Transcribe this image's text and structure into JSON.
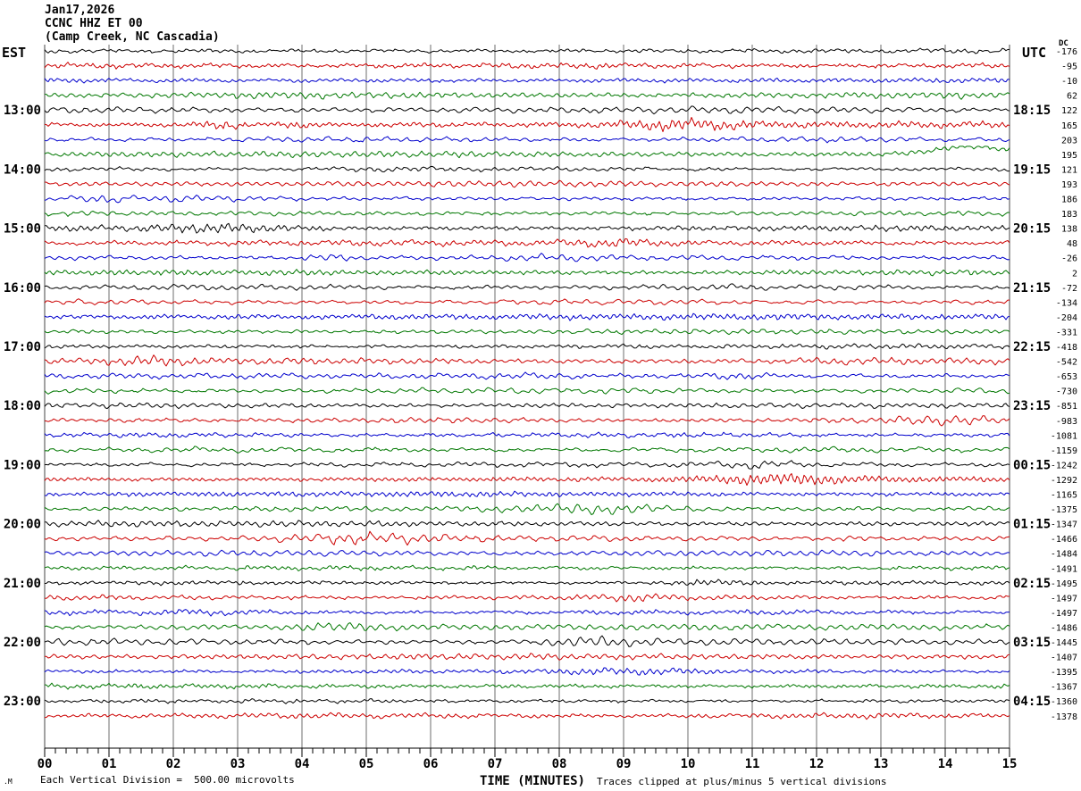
{
  "title": {
    "line1": "Jan17,2026",
    "line2": "CCNC HHZ ET 00",
    "line3": "(Camp Creek, NC Cascadia)"
  },
  "axis": {
    "left_header": "EST",
    "right_header": "UTC",
    "dc_header": "DC",
    "xlabel": "TIME (MINUTES)",
    "minute_labels": [
      "00",
      "01",
      "02",
      "03",
      "04",
      "05",
      "06",
      "07",
      "08",
      "09",
      "10",
      "11",
      "12",
      "13",
      "14",
      "15"
    ]
  },
  "footer": {
    "scale_note": "Each Vertical Division =  500.00 microvolts",
    "clip_note": "Traces clipped at plus/minus 5 vertical divisions",
    "watermark": ".M"
  },
  "palette": {
    "black": "#000000",
    "red": "#cc0000",
    "blue": "#0000cc",
    "green": "#007700",
    "grid": "#6e6e6e",
    "border": "#444444",
    "axis": "#000000"
  },
  "chart_data": {
    "type": "line",
    "subtype": "helicorder-seismogram",
    "station_line": "CCNC HHZ ET 00",
    "site": "Camp Creek, NC Cascadia",
    "date": "Jan17,2026",
    "timezone_left": "EST",
    "timezone_right": "UTC",
    "minutes_per_row": 15,
    "x_range": [
      0,
      15
    ],
    "x_ticks": [
      "00",
      "01",
      "02",
      "03",
      "04",
      "05",
      "06",
      "07",
      "08",
      "09",
      "10",
      "11",
      "12",
      "13",
      "14",
      "15"
    ],
    "x_minor_ticks_per_minute": 5,
    "xlabel": "TIME (MINUTES)",
    "scale": "Each Vertical Division =  500.00 microvolts",
    "clipping": "Traces clipped at plus/minus 5 vertical divisions",
    "clip_divisions": 5,
    "trace_color_cycle": [
      "black",
      "red",
      "blue",
      "green"
    ],
    "rows": [
      {
        "est": "",
        "utc": "",
        "dc": -176,
        "color": "black"
      },
      {
        "est": "",
        "utc": "",
        "dc": -95,
        "color": "red"
      },
      {
        "est": "",
        "utc": "",
        "dc": -10,
        "color": "blue"
      },
      {
        "est": "",
        "utc": "",
        "dc": 62,
        "color": "green"
      },
      {
        "est": "13:00",
        "utc": "18:15",
        "dc": 122,
        "color": "black"
      },
      {
        "est": "",
        "utc": "",
        "dc": 165,
        "color": "red"
      },
      {
        "est": "",
        "utc": "",
        "dc": 203,
        "color": "blue"
      },
      {
        "est": "",
        "utc": "",
        "dc": 195,
        "color": "green"
      },
      {
        "est": "14:00",
        "utc": "19:15",
        "dc": 121,
        "color": "black"
      },
      {
        "est": "",
        "utc": "",
        "dc": 193,
        "color": "red"
      },
      {
        "est": "",
        "utc": "",
        "dc": 186,
        "color": "blue"
      },
      {
        "est": "",
        "utc": "",
        "dc": 183,
        "color": "green"
      },
      {
        "est": "15:00",
        "utc": "20:15",
        "dc": 138,
        "color": "black"
      },
      {
        "est": "",
        "utc": "",
        "dc": 48,
        "color": "red"
      },
      {
        "est": "",
        "utc": "",
        "dc": -26,
        "color": "blue"
      },
      {
        "est": "",
        "utc": "",
        "dc": 2,
        "color": "green"
      },
      {
        "est": "16:00",
        "utc": "21:15",
        "dc": -72,
        "color": "black"
      },
      {
        "est": "",
        "utc": "",
        "dc": -134,
        "color": "red"
      },
      {
        "est": "",
        "utc": "",
        "dc": -204,
        "color": "blue"
      },
      {
        "est": "",
        "utc": "",
        "dc": -331,
        "color": "green"
      },
      {
        "est": "17:00",
        "utc": "22:15",
        "dc": -418,
        "color": "black"
      },
      {
        "est": "",
        "utc": "",
        "dc": -542,
        "color": "red"
      },
      {
        "est": "",
        "utc": "",
        "dc": -653,
        "color": "blue"
      },
      {
        "est": "",
        "utc": "",
        "dc": -730,
        "color": "green"
      },
      {
        "est": "18:00",
        "utc": "23:15",
        "dc": -851,
        "color": "black"
      },
      {
        "est": "",
        "utc": "",
        "dc": -983,
        "color": "red"
      },
      {
        "est": "",
        "utc": "",
        "dc": -1081,
        "color": "blue"
      },
      {
        "est": "",
        "utc": "",
        "dc": -1159,
        "color": "green"
      },
      {
        "est": "19:00",
        "utc": "00:15",
        "dc": -1242,
        "color": "black"
      },
      {
        "est": "",
        "utc": "",
        "dc": -1292,
        "color": "red"
      },
      {
        "est": "",
        "utc": "",
        "dc": -1165,
        "color": "blue"
      },
      {
        "est": "",
        "utc": "",
        "dc": -1375,
        "color": "green"
      },
      {
        "est": "20:00",
        "utc": "01:15",
        "dc": -1347,
        "color": "black"
      },
      {
        "est": "",
        "utc": "",
        "dc": -1466,
        "color": "red"
      },
      {
        "est": "",
        "utc": "",
        "dc": -1484,
        "color": "blue"
      },
      {
        "est": "",
        "utc": "",
        "dc": -1491,
        "color": "green"
      },
      {
        "est": "21:00",
        "utc": "02:15",
        "dc": -1495,
        "color": "black"
      },
      {
        "est": "",
        "utc": "",
        "dc": -1497,
        "color": "red"
      },
      {
        "est": "",
        "utc": "",
        "dc": -1497,
        "color": "blue"
      },
      {
        "est": "",
        "utc": "",
        "dc": -1486,
        "color": "green"
      },
      {
        "est": "22:00",
        "utc": "03:15",
        "dc": -1445,
        "color": "black"
      },
      {
        "est": "",
        "utc": "",
        "dc": -1407,
        "color": "red"
      },
      {
        "est": "",
        "utc": "",
        "dc": -1395,
        "color": "blue"
      },
      {
        "est": "",
        "utc": "",
        "dc": -1367,
        "color": "green"
      },
      {
        "est": "23:00",
        "utc": "04:15",
        "dc": -1360,
        "color": "black"
      },
      {
        "est": "",
        "utc": "",
        "dc": -1378,
        "color": "red"
      }
    ],
    "events": [
      {
        "row": 5,
        "type": "burst",
        "center_min": 2.75,
        "width_min": 0.2,
        "gain": 2.6
      },
      {
        "row": 7,
        "type": "drift",
        "center_min": 14.4,
        "width_min": 0.5,
        "amp": 9
      },
      {
        "row": 33,
        "type": "burst",
        "center_min": 4.9,
        "width_min": 0.8,
        "gain": 2.1
      }
    ]
  }
}
